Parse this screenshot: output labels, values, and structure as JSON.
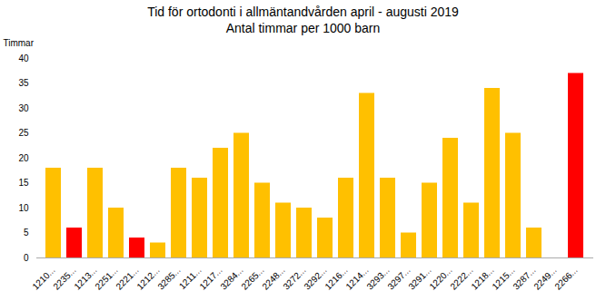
{
  "chart_data": {
    "type": "bar",
    "title": "Tid för ortodonti i allmäntandvården april - augusti 2019",
    "subtitle": "Antal timmar per 1000 barn",
    "ylabel": "Timmar",
    "categories": [
      "1210...",
      "2235...",
      "1213...",
      "2251...",
      "2221...",
      "1212...",
      "3285...",
      "1211...",
      "1217...",
      "3284...",
      "2265...",
      "2248...",
      "3272...",
      "3292...",
      "1216...",
      "1214...",
      "3293...",
      "3297...",
      "3291...",
      "1220...",
      "2222...",
      "1218...",
      "1215...",
      "3287...",
      "2249...",
      "2266..."
    ],
    "values": [
      18,
      6,
      18,
      10,
      4,
      3,
      18,
      16,
      22,
      25,
      15,
      11,
      10,
      8,
      16,
      33,
      16,
      5,
      15,
      24,
      11,
      34,
      25,
      6,
      0,
      37
    ],
    "colors": [
      "#FFC000",
      "#FF0000",
      "#FFC000",
      "#FFC000",
      "#FF0000",
      "#FFC000",
      "#FFC000",
      "#FFC000",
      "#FFC000",
      "#FFC000",
      "#FFC000",
      "#FFC000",
      "#FFC000",
      "#FFC000",
      "#FFC000",
      "#FFC000",
      "#FFC000",
      "#FFC000",
      "#FFC000",
      "#FFC000",
      "#FFC000",
      "#FFC000",
      "#FFC000",
      "#FFC000",
      "#FFC000",
      "#FF0000"
    ],
    "ylim": [
      0,
      40
    ],
    "yticks": [
      0,
      5,
      10,
      15,
      20,
      25,
      30,
      35,
      40
    ],
    "grid": false
  }
}
